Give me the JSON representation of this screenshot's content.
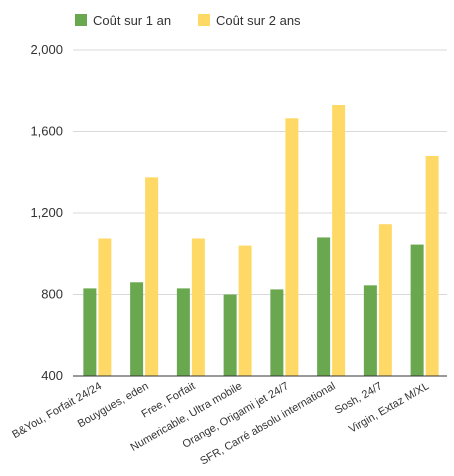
{
  "chart_data": {
    "type": "bar",
    "categories": [
      "B&You, Forfait 24/24",
      "Bouygues, eden",
      "Free, Forfait",
      "Numericable, Ultra mobile",
      "Orange, Origami jet 24/7",
      "SFR, Carré absolu international",
      "Sosh, 24/7",
      "Virgin, Extaz M/XL"
    ],
    "series": [
      {
        "name": "Coût sur 1 an",
        "color": "#6aa84f",
        "values": [
          830,
          860,
          830,
          800,
          825,
          1080,
          845,
          1045
        ]
      },
      {
        "name": "Coût sur 2 ans",
        "color": "#ffd966",
        "values": [
          1075,
          1375,
          1075,
          1040,
          1665,
          1730,
          1145,
          1480
        ]
      }
    ],
    "ylim": [
      400,
      2000
    ],
    "yticks": [
      "400",
      "800",
      "1,200",
      "1,600",
      "2,000"
    ],
    "grid": true,
    "legend_position": "top"
  }
}
